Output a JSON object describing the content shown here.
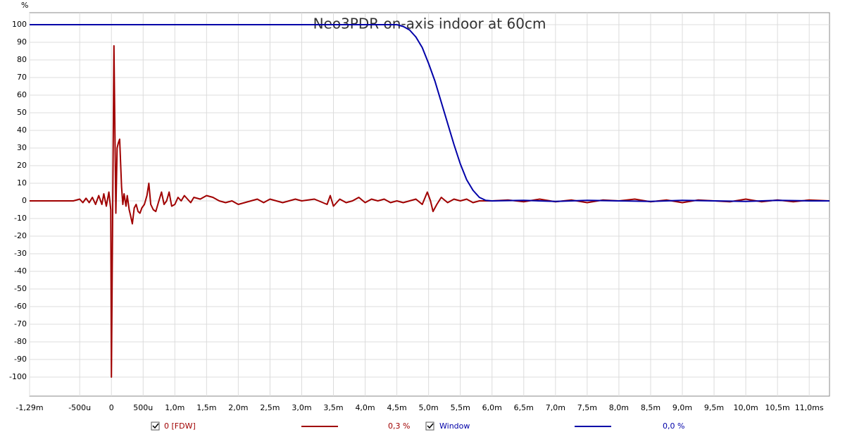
{
  "chart_data": {
    "type": "line",
    "title": "Neo3PDR on-axis indoor at 60cm",
    "y_label": "%",
    "xlim": [
      -1.29,
      11.32
    ],
    "ylim": [
      -110.8,
      106.8
    ],
    "xticks": [
      {
        "value": -1.29,
        "label": "-1,29m"
      },
      {
        "value": -0.5,
        "label": "-500u"
      },
      0,
      {
        "value": 0.5,
        "label": "500u"
      },
      {
        "value": 1.0,
        "label": "1,0m"
      },
      {
        "value": 1.5,
        "label": "1,5m"
      },
      {
        "value": 2.0,
        "label": "2,0m"
      },
      {
        "value": 2.5,
        "label": "2,5m"
      },
      {
        "value": 3.0,
        "label": "3,0m"
      },
      {
        "value": 3.5,
        "label": "3,5m"
      },
      {
        "value": 4.0,
        "label": "4,0m"
      },
      {
        "value": 4.5,
        "label": "4,5m"
      },
      {
        "value": 5.0,
        "label": "5,0m"
      },
      {
        "value": 5.5,
        "label": "5,5m"
      },
      {
        "value": 6.0,
        "label": "6,0m"
      },
      {
        "value": 6.5,
        "label": "6,5m"
      },
      {
        "value": 7.0,
        "label": "7,0m"
      },
      {
        "value": 7.5,
        "label": "7,5m"
      },
      {
        "value": 8.0,
        "label": "8,0m"
      },
      {
        "value": 8.5,
        "label": "8,5m"
      },
      {
        "value": 9.0,
        "label": "9,0m"
      },
      {
        "value": 9.5,
        "label": "9,5m"
      },
      {
        "value": 10.0,
        "label": "10,0m"
      },
      {
        "value": 10.5,
        "label": "10,5m"
      },
      {
        "value": 11.0,
        "label": "11,0ms"
      }
    ],
    "yticks": [
      100,
      90,
      80,
      70,
      60,
      50,
      40,
      30,
      20,
      10,
      0,
      -10,
      -20,
      -30,
      -40,
      -50,
      -60,
      -70,
      -80,
      -90,
      -100
    ],
    "grid": true,
    "series": [
      {
        "name": "0 [FDW]",
        "value_label": "0,3 %",
        "color": "#a00000",
        "x": [
          -1.29,
          -0.6,
          -0.5,
          -0.45,
          -0.4,
          -0.35,
          -0.3,
          -0.25,
          -0.2,
          -0.15,
          -0.12,
          -0.08,
          -0.04,
          -0.01,
          0.0,
          0.04,
          0.07,
          0.09,
          0.11,
          0.13,
          0.16,
          0.18,
          0.2,
          0.23,
          0.25,
          0.28,
          0.3,
          0.33,
          0.36,
          0.39,
          0.42,
          0.45,
          0.48,
          0.52,
          0.56,
          0.59,
          0.62,
          0.66,
          0.7,
          0.74,
          0.79,
          0.83,
          0.87,
          0.91,
          0.95,
          1.0,
          1.05,
          1.1,
          1.15,
          1.2,
          1.25,
          1.3,
          1.4,
          1.5,
          1.6,
          1.7,
          1.8,
          1.9,
          2.0,
          2.1,
          2.2,
          2.3,
          2.4,
          2.5,
          2.6,
          2.7,
          2.8,
          2.9,
          3.0,
          3.2,
          3.4,
          3.45,
          3.5,
          3.6,
          3.7,
          3.8,
          3.9,
          4.0,
          4.1,
          4.2,
          4.3,
          4.4,
          4.5,
          4.6,
          4.7,
          4.8,
          4.9,
          4.98,
          5.03,
          5.07,
          5.13,
          5.2,
          5.3,
          5.4,
          5.5,
          5.6,
          5.7,
          5.8,
          6.0,
          6.25,
          6.5,
          6.75,
          7.0,
          7.25,
          7.5,
          7.75,
          8.0,
          8.25,
          8.5,
          8.75,
          9.0,
          9.25,
          9.5,
          9.75,
          10.0,
          10.25,
          10.5,
          10.75,
          11.0,
          11.32
        ],
        "values": [
          0,
          0,
          1,
          -1,
          1.5,
          -1,
          2,
          -2,
          3,
          -2,
          4,
          -3,
          5,
          -5,
          -100,
          88,
          -7,
          30,
          33,
          35,
          8,
          -2,
          4,
          -3,
          3,
          -5,
          -8,
          -13,
          -4,
          -2,
          -6,
          -7,
          -4,
          -2,
          3,
          10,
          -2,
          -5,
          -6,
          -1,
          5,
          -2,
          0,
          5,
          -3,
          -2,
          2,
          0,
          3,
          1,
          -1,
          2,
          1,
          3,
          2,
          0,
          -1,
          0,
          -2,
          -1,
          0,
          1,
          -1,
          1,
          0,
          -1,
          0,
          1,
          0,
          1,
          -2,
          3,
          -3,
          1,
          -1,
          0,
          2,
          -1,
          1,
          0,
          1,
          -1,
          0,
          -1,
          0,
          1,
          -2,
          5,
          0,
          -6,
          -2,
          2,
          -1,
          1,
          0,
          1,
          -1,
          0,
          0,
          0.5,
          -0.5,
          1,
          -0.5,
          0.5,
          -1,
          0.5,
          0,
          1,
          -0.5,
          0.5,
          -1,
          0.5,
          0,
          -0.5,
          1,
          -0.5,
          0.5,
          -0.5,
          0.5,
          0
        ]
      },
      {
        "name": "Window",
        "value_label": "0,0 %",
        "color": "#0000a8",
        "x": [
          -1.29,
          4.5,
          4.6,
          4.7,
          4.8,
          4.9,
          5.0,
          5.1,
          5.2,
          5.3,
          5.4,
          5.5,
          5.6,
          5.7,
          5.8,
          5.9,
          6.0,
          6.5,
          7.0,
          7.5,
          8.0,
          8.5,
          9.0,
          9.5,
          10.0,
          10.5,
          11.0,
          11.32
        ],
        "values": [
          100,
          100,
          99,
          97,
          93,
          87,
          78,
          68,
          56,
          44,
          32,
          21,
          12,
          6,
          2,
          0.3,
          0,
          0.3,
          -0.3,
          0.3,
          0,
          -0.3,
          0.3,
          0,
          -0.3,
          0.3,
          0,
          0
        ]
      }
    ]
  }
}
